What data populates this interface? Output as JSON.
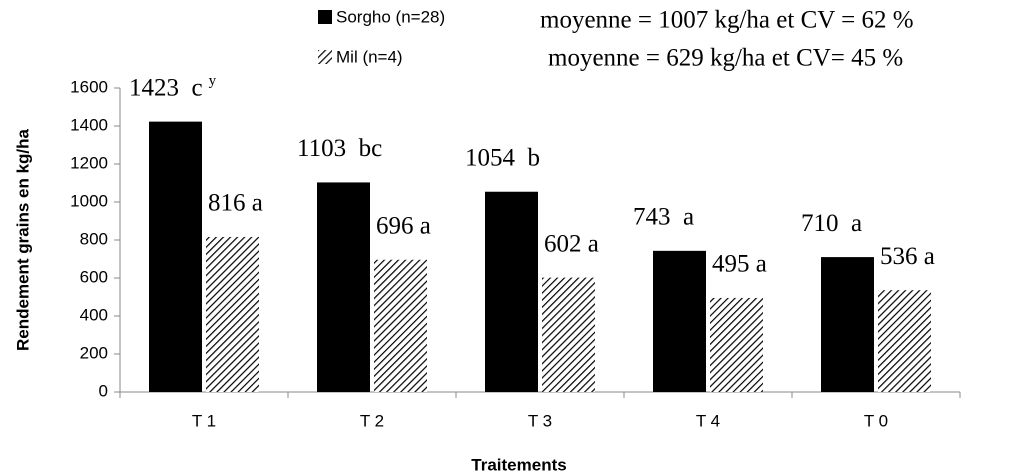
{
  "chart_data": {
    "type": "bar",
    "categories": [
      "T 1",
      "T 2",
      "T 3",
      "T 4",
      "T 0"
    ],
    "series": [
      {
        "name": "Sorgho (n=28)",
        "color": "#000000",
        "fill": "solid",
        "values": [
          1423,
          1103,
          1054,
          743,
          710
        ],
        "value_labels": [
          "1423  c",
          "1103  bc",
          "1054  b",
          "743  a",
          "710  a"
        ]
      },
      {
        "name": "Mil (n=4)",
        "color": "#000000",
        "fill": "hatch",
        "values": [
          816,
          696,
          602,
          495,
          536
        ],
        "value_labels": [
          "816 a",
          "696 a",
          "602 a",
          "495 a",
          "536 a"
        ]
      }
    ],
    "annotation": "y",
    "notes": [
      "moyenne  = 1007 kg/ha et CV = 62 %",
      "moyenne  = 629 kg/ha et CV= 45 %"
    ],
    "x_label": "Traitements",
    "y_label": "Rendement  grains  en kg/ha",
    "ylim": [
      0,
      1600
    ],
    "yticks": [
      0,
      200,
      400,
      600,
      800,
      1000,
      1200,
      1400,
      1600
    ],
    "grid": false
  }
}
